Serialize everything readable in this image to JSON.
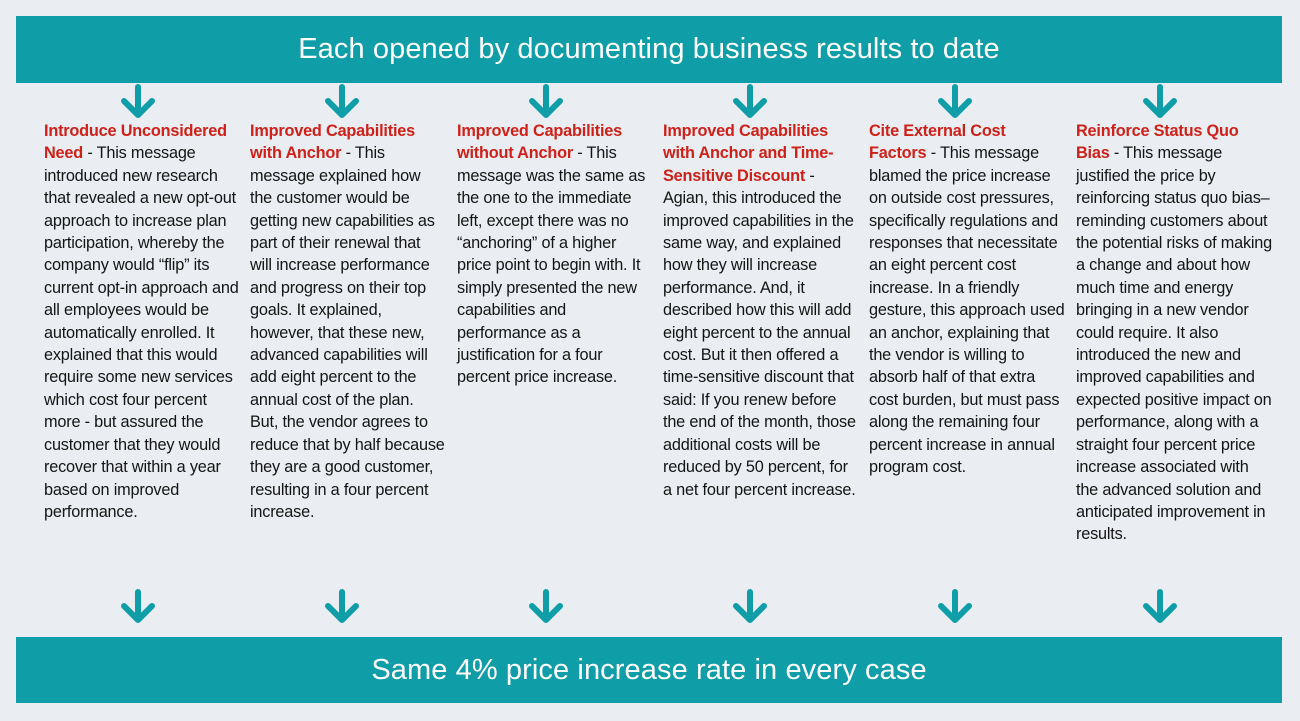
{
  "header": {
    "title": "Each opened by documenting business results to date"
  },
  "footer": {
    "title": "Same 4% price increase rate in every case"
  },
  "colors": {
    "banner": "#0f9ea8",
    "heading": "#d0201a",
    "text": "#141414",
    "background": "#eaeef2"
  },
  "columns": [
    {
      "heading": "Introduce Unconsidered Need",
      "body": " - This message introduced new research that revealed a new opt-out approach to increase plan participation, whereby the company would “flip” its current opt-in approach and all employees would be automatically enrolled. It explained that this would require some new services which cost four percent more - but assured the customer that they would recover that within a year based on improved performance."
    },
    {
      "heading": "Improved Capabilities with Anchor",
      "body": " - This message explained how the customer would be getting new capabilities as part of their renewal that will increase performance and progress on their top goals. It explained, however, that these new, advanced capabilities will add eight percent to the annual cost of the plan. But, the vendor agrees to reduce that by half because they are a good customer, resulting in a four percent increase."
    },
    {
      "heading": "Improved Capabilities without Anchor",
      "body": " - This message was the same as the one to the immediate left, except there was no “anchoring” of a higher price point to begin with. It simply presented the new capabilities and performance as a justification for a four percent price increase."
    },
    {
      "heading": "Improved Capabilities with Anchor and Time-Sensitive Discount",
      "body": " - Agian, this introduced the improved capabilities in the same way, and explained how they will increase performance. And, it described how this will add eight percent to the annual cost. But it then offered a time-sensitive discount that said: If you renew before the end of the month, those additional costs will be reduced by 50 percent, for a net four percent increase."
    },
    {
      "heading": "Cite External Cost Factors",
      "body": " - This message blamed the price increase on outside cost pressures, specifically regulations and responses that necessitate an eight percent cost increase. In a friendly gesture, this approach used an anchor, explaining that the vendor is willing to absorb half of that extra cost burden, but must pass along the remaining four percent increase in annual program cost."
    },
    {
      "heading": "Reinforce Status Quo Bias",
      "body": " - This message justified the price by reinforcing status quo bias–reminding customers about the potential risks of making a change and about how much time and energy bringing in a new vendor could require. It also introduced the new and improved capabilities and expected positive impact on performance, along with a straight four percent price increase associated with the advanced solution and anticipated improvement in results."
    }
  ]
}
